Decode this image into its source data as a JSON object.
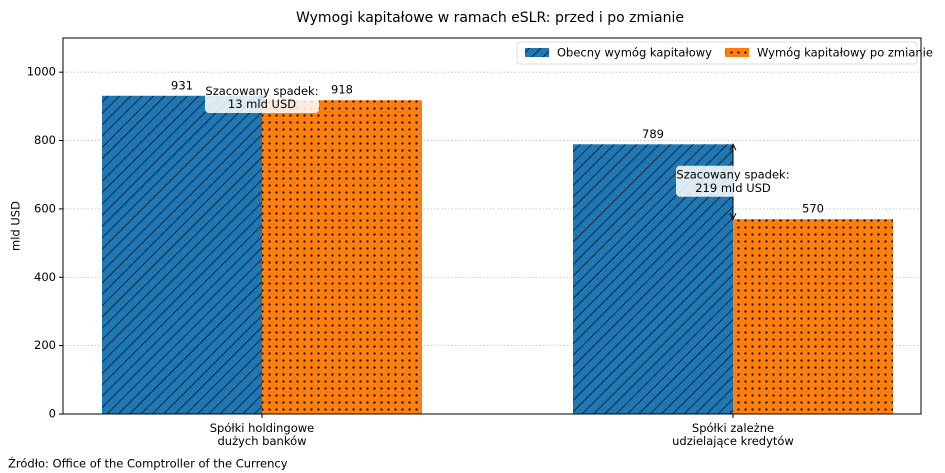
{
  "chart_data": {
    "type": "bar",
    "title": "Wymogi kapitałowe w ramach eSLR: przed i po zmianie",
    "y_label": "mld USD",
    "categories": [
      "Spółki holdingowe\ndużych banków",
      "Spółki zależne\nudzielające kredytów"
    ],
    "series": [
      {
        "name": "Obecny wymóg kapitałowy",
        "color": "#1f77b4",
        "values": [
          931,
          789
        ]
      },
      {
        "name": "Wymóg kapitałowy po zmianie",
        "color": "#ff7f0e",
        "values": [
          918,
          570
        ]
      }
    ],
    "annotations": [
      "Szacowany spadek:\n13 mld USD",
      "Szacowany spadek:\n219 mld USD"
    ],
    "source": "Źródło: Office of the Comptroller of the Currency",
    "ylim": [
      0,
      1100
    ],
    "yticks": [
      0,
      200,
      400,
      600,
      800,
      1000
    ],
    "grid": true,
    "legend": "upper right"
  }
}
